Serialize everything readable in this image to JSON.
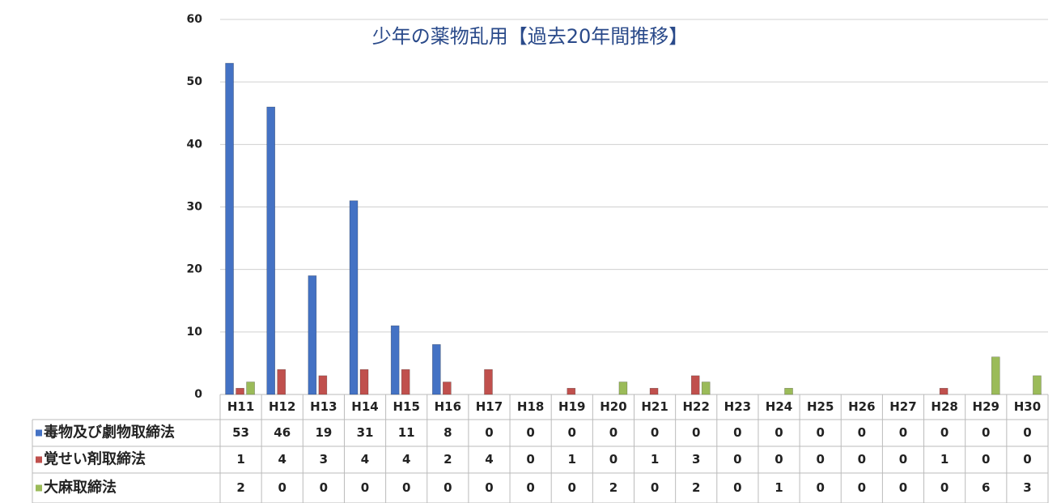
{
  "chart_data": {
    "type": "bar",
    "title": "少年の薬物乱用【過去20年間推移】",
    "categories": [
      "H11",
      "H12",
      "H13",
      "H14",
      "H15",
      "H16",
      "H17",
      "H18",
      "H19",
      "H20",
      "H21",
      "H22",
      "H23",
      "H24",
      "H25",
      "H26",
      "H27",
      "H28",
      "H29",
      "H30"
    ],
    "series": [
      {
        "name": "毒物及び劇物取締法",
        "color": "#4472c4",
        "values": [
          53,
          46,
          19,
          31,
          11,
          8,
          0,
          0,
          0,
          0,
          0,
          0,
          0,
          0,
          0,
          0,
          0,
          0,
          0,
          0
        ]
      },
      {
        "name": "覚せい剤取締法",
        "color": "#c0504d",
        "values": [
          1,
          4,
          3,
          4,
          4,
          2,
          4,
          0,
          1,
          0,
          1,
          3,
          0,
          0,
          0,
          0,
          0,
          1,
          0,
          0
        ]
      },
      {
        "name": "大麻取締法",
        "color": "#9bbb59",
        "values": [
          2,
          0,
          0,
          0,
          0,
          0,
          0,
          0,
          0,
          2,
          0,
          2,
          0,
          1,
          0,
          0,
          0,
          0,
          6,
          3
        ]
      }
    ],
    "ylim": [
      0,
      60
    ],
    "yticks": [
      0,
      10,
      20,
      30,
      40,
      50,
      60
    ],
    "grid": true
  }
}
